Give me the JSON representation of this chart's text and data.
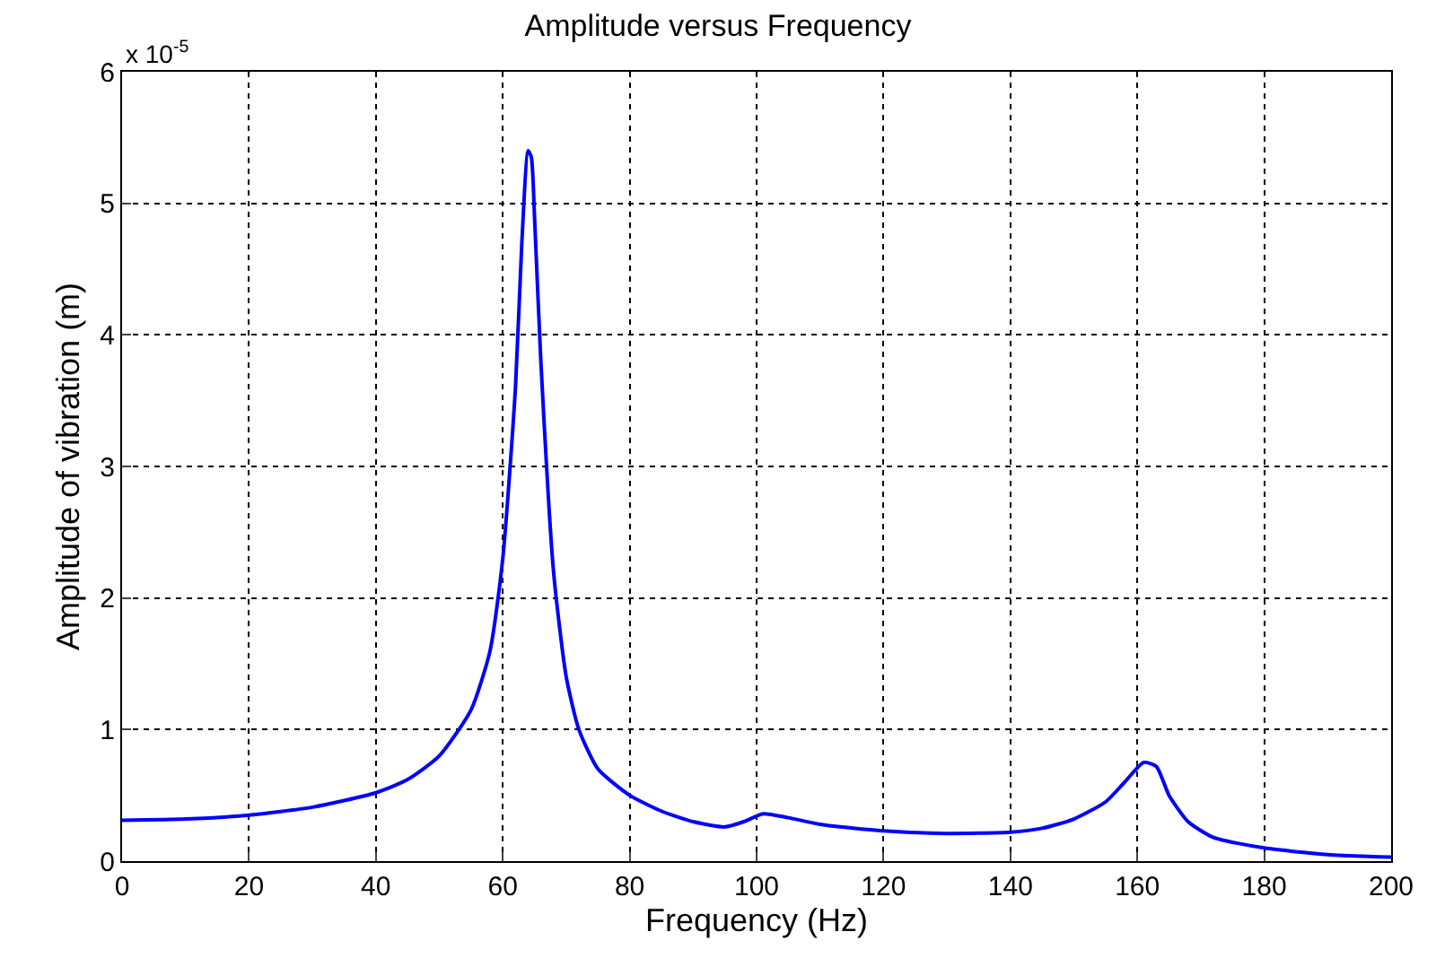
{
  "chart_data": {
    "type": "line",
    "title": "Amplitude versus Frequency",
    "xlabel": "Frequency (Hz)",
    "ylabel": "Amplitude of vibration (m)",
    "annotations": [
      "x 10$^{-5}$"
    ],
    "series": [
      {
        "color": "#0000ff",
        "x": [
          0,
          10,
          20,
          30,
          40,
          45,
          50,
          55,
          58,
          60,
          62,
          63,
          64,
          64.5,
          65,
          66,
          68,
          70,
          72,
          75,
          80,
          85,
          90,
          95,
          98,
          101,
          105,
          110,
          120,
          130,
          140,
          145,
          150,
          155,
          158,
          161,
          163,
          165,
          168,
          172,
          180,
          190,
          200
        ],
        "values": [
          0.31,
          0.32,
          0.35,
          0.41,
          0.52,
          0.62,
          0.8,
          1.15,
          1.6,
          2.3,
          3.6,
          4.7,
          5.4,
          5.35,
          4.9,
          3.8,
          2.2,
          1.4,
          1.0,
          0.7,
          0.5,
          0.38,
          0.3,
          0.26,
          0.3,
          0.36,
          0.33,
          0.28,
          0.23,
          0.21,
          0.22,
          0.25,
          0.32,
          0.45,
          0.6,
          0.75,
          0.72,
          0.5,
          0.3,
          0.18,
          0.1,
          0.05,
          0.03
        ]
      }
    ],
    "xlim": [
      0,
      200
    ],
    "xticks": [
      0,
      20,
      40,
      60,
      80,
      100,
      120,
      140,
      160,
      180,
      200
    ],
    "ylim": [
      0,
      6
    ],
    "yticks": [
      0,
      1,
      2,
      3,
      4,
      5,
      6
    ],
    "grid": true,
    "line_style": "solid",
    "marker": "none"
  }
}
